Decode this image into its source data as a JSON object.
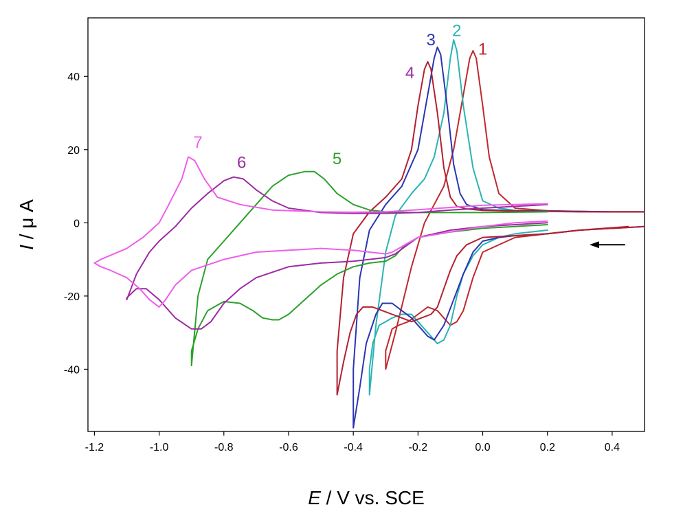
{
  "chart_data": {
    "type": "line",
    "title": "",
    "xlabel_italic": "E",
    "xlabel_rest": " / V vs. SCE",
    "ylabel_italic": "I",
    "ylabel_rest": " / μ A",
    "xlim": [
      -1.22,
      0.5
    ],
    "ylim": [
      -57,
      56
    ],
    "x_ticks": [
      -1.2,
      -1.0,
      -0.8,
      -0.6,
      -0.4,
      -0.2,
      0.0,
      0.2,
      0.4
    ],
    "x_tick_labels": [
      "-1.2",
      "-1.0",
      "-0.8",
      "-0.6",
      "-0.4",
      "-0.2",
      "0.0",
      "0.2",
      "0.4"
    ],
    "y_ticks": [
      -40,
      -20,
      0,
      20,
      40
    ],
    "y_tick_labels": [
      "-40",
      "-20",
      "0",
      "20",
      "40"
    ],
    "grid": false,
    "annotation": "scan direction arrow pointing left",
    "series": [
      {
        "name": "1",
        "color": "#c0282c",
        "x": [
          0.45,
          0.3,
          0.2,
          0.1,
          0.0,
          -0.03,
          -0.06,
          -0.08,
          -0.1,
          -0.12,
          -0.14,
          -0.17,
          -0.2,
          -0.23,
          -0.26,
          -0.28,
          -0.3,
          -0.3,
          -0.27,
          -0.22,
          -0.18,
          -0.15,
          -0.12,
          -0.09,
          -0.06,
          -0.04,
          -0.03,
          -0.02,
          0.0,
          0.02,
          0.05,
          0.1,
          0.2,
          0.3,
          0.4,
          0.5
        ],
        "y": [
          -1,
          -2,
          -3,
          -4,
          -8,
          -15,
          -24,
          -27,
          -28,
          -26,
          -24,
          -23,
          -25,
          -27,
          -28,
          -29,
          -35,
          -40,
          -30,
          -12,
          0,
          5,
          10,
          20,
          35,
          45,
          47,
          45,
          32,
          18,
          8,
          4,
          3.3,
          3.1,
          3.0,
          3.0
        ]
      },
      {
        "name": "2",
        "color": "#2bb3b3",
        "x": [
          0.2,
          0.1,
          0.05,
          0.0,
          -0.03,
          -0.06,
          -0.08,
          -0.1,
          -0.12,
          -0.14,
          -0.17,
          -0.2,
          -0.22,
          -0.25,
          -0.28,
          -0.3,
          -0.32,
          -0.34,
          -0.35,
          -0.35,
          -0.33,
          -0.3,
          -0.27,
          -0.22,
          -0.18,
          -0.15,
          -0.12,
          -0.1,
          -0.09,
          -0.08,
          -0.06,
          -0.03,
          0.0,
          0.05,
          0.1,
          0.2,
          0.3,
          0.4,
          0.5
        ],
        "y": [
          -2,
          -3,
          -4,
          -6,
          -9,
          -14,
          -20,
          -28,
          -32,
          -33,
          -30,
          -27,
          -25,
          -25,
          -26,
          -27,
          -28,
          -33,
          -40,
          -47,
          -28,
          -8,
          2,
          8,
          12,
          18,
          30,
          45,
          50,
          47,
          32,
          15,
          6,
          4,
          3.4,
          3.2,
          3.1,
          3.0,
          3.0
        ]
      },
      {
        "name": "3",
        "color": "#2a35b0",
        "x": [
          0.5,
          0.3,
          0.2,
          0.1,
          0.05,
          0.0,
          -0.03,
          -0.06,
          -0.09,
          -0.12,
          -0.15,
          -0.17,
          -0.19,
          -0.22,
          -0.25,
          -0.28,
          -0.31,
          -0.33,
          -0.36,
          -0.38,
          -0.4,
          -0.4,
          -0.38,
          -0.35,
          -0.3,
          -0.25,
          -0.2,
          -0.17,
          -0.15,
          -0.14,
          -0.13,
          -0.11,
          -0.09,
          -0.07,
          -0.05,
          0.0,
          0.1,
          0.2,
          0.3,
          0.4,
          0.5
        ],
        "y": [
          -1,
          -2,
          -3,
          -3.5,
          -4,
          -5,
          -8,
          -14,
          -21,
          -28,
          -32,
          -31,
          -29,
          -26,
          -24,
          -22,
          -22,
          -25,
          -33,
          -45,
          -56,
          -40,
          -15,
          -2,
          5,
          10,
          20,
          35,
          45,
          48,
          46,
          32,
          16,
          8,
          5,
          3.6,
          3.3,
          3.2,
          3.1,
          3.0,
          3.0
        ]
      },
      {
        "name": "4",
        "color": "#b22030",
        "x": [
          0.5,
          0.3,
          0.2,
          0.1,
          0.0,
          -0.05,
          -0.08,
          -0.1,
          -0.12,
          -0.14,
          -0.16,
          -0.19,
          -0.22,
          -0.25,
          -0.28,
          -0.31,
          -0.34,
          -0.37,
          -0.39,
          -0.41,
          -0.43,
          -0.45,
          -0.45,
          -0.43,
          -0.4,
          -0.35,
          -0.3,
          -0.25,
          -0.22,
          -0.2,
          -0.18,
          -0.17,
          -0.16,
          -0.14,
          -0.12,
          -0.1,
          -0.08,
          -0.05,
          0.0,
          0.1,
          0.2,
          0.3,
          0.4,
          0.5
        ],
        "y": [
          -1,
          -2,
          -3,
          -3.5,
          -4,
          -6,
          -9,
          -13,
          -18,
          -23,
          -25,
          -26,
          -27,
          -26,
          -25,
          -24,
          -23,
          -23,
          -25,
          -30,
          -38,
          -47,
          -35,
          -15,
          -3,
          3,
          7,
          12,
          20,
          32,
          42,
          44,
          42,
          30,
          15,
          7,
          4.5,
          3.8,
          3.4,
          3.2,
          3.1,
          3.0,
          3.0,
          3.0
        ]
      },
      {
        "name": "5",
        "color": "#2ca02c",
        "x": [
          0.2,
          0.1,
          0.0,
          -0.1,
          -0.2,
          -0.24,
          -0.27,
          -0.3,
          -0.35,
          -0.4,
          -0.45,
          -0.5,
          -0.55,
          -0.6,
          -0.63,
          -0.65,
          -0.68,
          -0.71,
          -0.75,
          -0.8,
          -0.85,
          -0.88,
          -0.9,
          -0.9,
          -0.88,
          -0.85,
          -0.8,
          -0.75,
          -0.7,
          -0.65,
          -0.6,
          -0.55,
          -0.52,
          -0.49,
          -0.45,
          -0.4,
          -0.35,
          -0.3,
          -0.2,
          -0.1,
          0.0,
          0.1,
          0.2
        ],
        "y": [
          -0.5,
          -1,
          -1.5,
          -2.5,
          -4,
          -6,
          -9,
          -10.5,
          -11,
          -12,
          -14,
          -17,
          -21,
          -25,
          -26.5,
          -26.5,
          -26,
          -24,
          -22,
          -21.5,
          -24,
          -29,
          -35,
          -39,
          -20,
          -10,
          -5,
          0,
          5,
          10,
          13,
          14,
          14,
          12,
          8,
          5,
          3.5,
          3,
          2.8,
          2.8,
          2.8,
          2.9,
          3.0
        ]
      },
      {
        "name": "6",
        "color": "#9b2ca3",
        "x": [
          0.2,
          0.1,
          0.0,
          -0.1,
          -0.2,
          -0.24,
          -0.27,
          -0.3,
          -0.35,
          -0.4,
          -0.5,
          -0.6,
          -0.7,
          -0.75,
          -0.8,
          -0.84,
          -0.87,
          -0.9,
          -0.95,
          -1.0,
          -1.04,
          -1.07,
          -1.1,
          -1.1,
          -1.07,
          -1.03,
          -1.0,
          -0.95,
          -0.9,
          -0.85,
          -0.8,
          -0.77,
          -0.74,
          -0.7,
          -0.65,
          -0.6,
          -0.5,
          -0.4,
          -0.3,
          -0.2,
          -0.1,
          0.0,
          0.1,
          0.2
        ],
        "y": [
          0,
          -0.5,
          -1,
          -2,
          -4,
          -6.5,
          -8.5,
          -9.5,
          -10,
          -10.5,
          -11,
          -12,
          -15,
          -18,
          -22,
          -27,
          -29,
          -29,
          -26,
          -21,
          -18,
          -18,
          -20.5,
          -21,
          -14,
          -8,
          -5,
          -1,
          4,
          8,
          11.5,
          12.5,
          12,
          9,
          6,
          4,
          2.8,
          2.6,
          2.6,
          2.8,
          3.5,
          4.0,
          4.5,
          5.0
        ]
      },
      {
        "name": "7",
        "color": "#ee5ee9",
        "x": [
          0.2,
          0.1,
          0.0,
          -0.1,
          -0.2,
          -0.25,
          -0.28,
          -0.3,
          -0.4,
          -0.5,
          -0.6,
          -0.7,
          -0.8,
          -0.85,
          -0.9,
          -0.95,
          -0.98,
          -1.0,
          -1.03,
          -1.06,
          -1.1,
          -1.15,
          -1.18,
          -1.2,
          -1.18,
          -1.1,
          -1.05,
          -1.0,
          -0.97,
          -0.93,
          -0.91,
          -0.89,
          -0.86,
          -0.82,
          -0.75,
          -0.65,
          -0.5,
          -0.4,
          -0.3,
          -0.2,
          -0.1,
          0.0,
          0.1,
          0.2
        ],
        "y": [
          0.5,
          0,
          -1,
          -2.5,
          -4,
          -6.5,
          -8,
          -8.5,
          -7.5,
          -7,
          -7.5,
          -8,
          -10,
          -11.5,
          -13,
          -17,
          -21,
          -23,
          -21,
          -18,
          -15,
          -13,
          -12,
          -11,
          -10,
          -7,
          -4,
          0,
          5,
          12,
          18,
          17,
          12,
          7,
          5,
          3.5,
          3,
          2.9,
          3,
          3.6,
          4.2,
          4.8,
          5,
          5.2
        ]
      }
    ],
    "curve_labels": [
      {
        "text": "1",
        "x": 0.0,
        "y": 46,
        "color": "#c0282c"
      },
      {
        "text": "2",
        "x": -0.08,
        "y": 51,
        "color": "#2bb3b3"
      },
      {
        "text": "3",
        "x": -0.16,
        "y": 48.5,
        "color": "#2a35b0"
      },
      {
        "text": "4",
        "x": -0.225,
        "y": 39.5,
        "color": "#9b2ca3"
      },
      {
        "text": "5",
        "x": -0.45,
        "y": 16,
        "color": "#2ca02c"
      },
      {
        "text": "6",
        "x": -0.745,
        "y": 15,
        "color": "#9b2ca3"
      },
      {
        "text": "7",
        "x": -0.88,
        "y": 20.5,
        "color": "#ee5ee9"
      }
    ],
    "arrow": {
      "x_from": 0.44,
      "x_to": 0.33,
      "y": -6,
      "color": "#000000"
    }
  }
}
